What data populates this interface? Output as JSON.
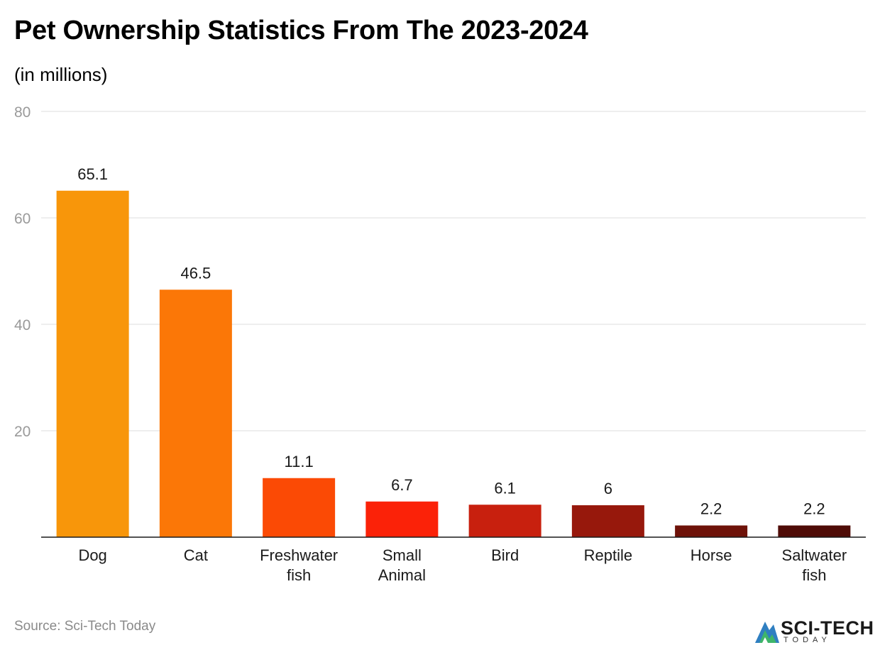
{
  "chart_data": {
    "type": "bar",
    "title": "Pet Ownership Statistics From The 2023-2024",
    "subtitle": "(in millions)",
    "categories": [
      "Dog",
      "Cat",
      "Freshwater fish",
      "Small Animal",
      "Bird",
      "Reptile",
      "Horse",
      "Saltwater fish"
    ],
    "category_lines": [
      [
        "Dog"
      ],
      [
        "Cat"
      ],
      [
        "Freshwater",
        "fish"
      ],
      [
        "Small",
        "Animal"
      ],
      [
        "Bird"
      ],
      [
        "Reptile"
      ],
      [
        "Horse"
      ],
      [
        "Saltwater",
        "fish"
      ]
    ],
    "values": [
      65.1,
      46.5,
      11.1,
      6.7,
      6.1,
      6,
      2.2,
      2.2
    ],
    "value_labels": [
      "65.1",
      "46.5",
      "11.1",
      "6.7",
      "6.1",
      "6",
      "2.2",
      "2.2"
    ],
    "colors": [
      "#f8960a",
      "#fb7707",
      "#fb4a05",
      "#fb2208",
      "#c8200e",
      "#97180c",
      "#6e1209",
      "#4f0c07"
    ],
    "ylim": [
      0,
      80
    ],
    "yticks": [
      20,
      40,
      60,
      80
    ],
    "ytick_labels": [
      "20",
      "40",
      "60",
      "80"
    ],
    "grid": true,
    "xlabel": "",
    "ylabel": ""
  },
  "footer": {
    "source": "Source: Sci-Tech Today",
    "logo_text": "SCI-TECH",
    "logo_sub": "TODAY"
  }
}
